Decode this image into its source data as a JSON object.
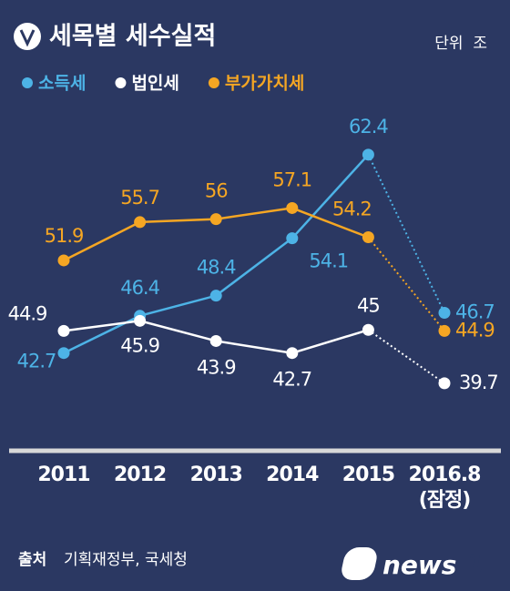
{
  "chart_data": {
    "type": "line",
    "title": "세목별 세수실적",
    "unit": "단위  조",
    "categories": [
      "2011",
      "2012",
      "2013",
      "2014",
      "2015",
      "2016.8\n(잠정)"
    ],
    "series": [
      {
        "name": "소득세",
        "color": "#4db3e6",
        "values": [
          42.7,
          46.4,
          48.4,
          54.1,
          62.4,
          46.7
        ]
      },
      {
        "name": "법인세",
        "color": "#ffffff",
        "values": [
          44.9,
          45.9,
          43.9,
          42.7,
          45,
          39.7
        ]
      },
      {
        "name": "부가가치세",
        "color": "#f5a623",
        "values": [
          51.9,
          55.7,
          56,
          57.1,
          54.2,
          44.9
        ]
      }
    ],
    "ylim": [
      33,
      66
    ],
    "dotted_last_segment": true,
    "source_label": "출처",
    "source": "기획재정부, 국세청",
    "logo_text": "news",
    "logo_mark": "1"
  }
}
